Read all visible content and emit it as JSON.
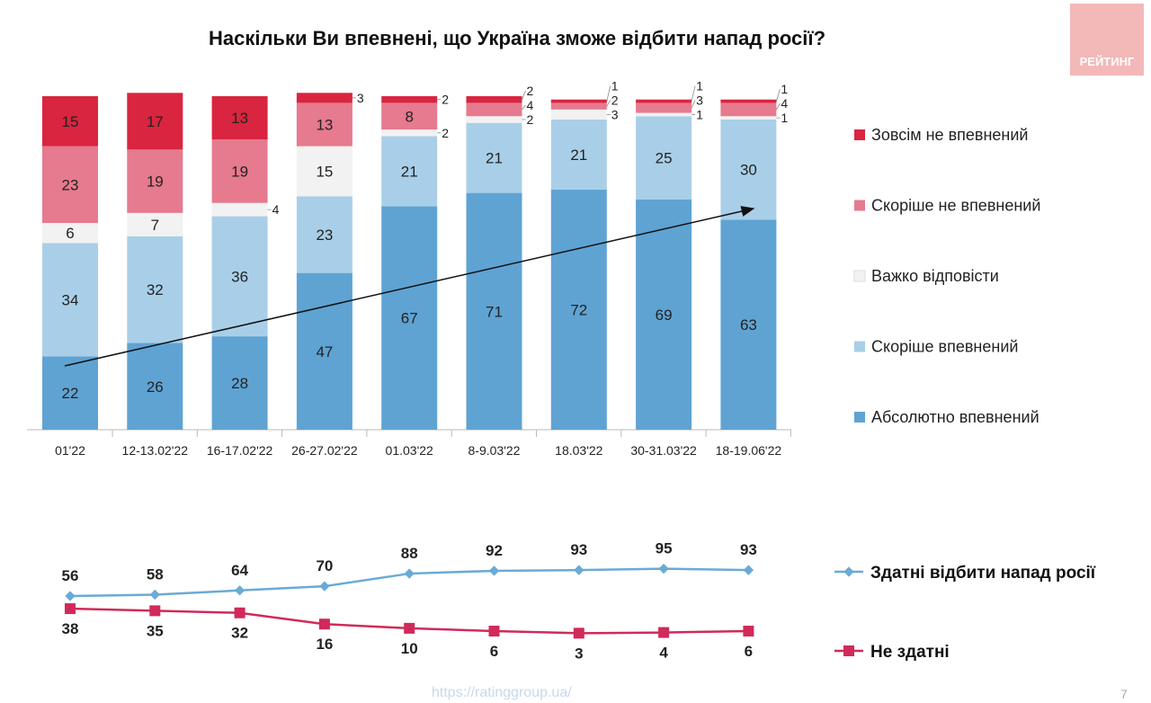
{
  "title": "Наскільки Ви впевнені, що Україна зможе відбити напад росії?",
  "logo_text": "РЕЙТИНГ",
  "footer_url": "https://ratinggroup.ua/",
  "page_number": "7",
  "chart_data": [
    {
      "type": "bar",
      "stacked": true,
      "categories": [
        "01'22",
        "12-13.02'22",
        "16-17.02'22",
        "26-27.02'22",
        "01.03'22",
        "8-9.03'22",
        "18.03'22",
        "30-31.03'22",
        "18-19.06'22"
      ],
      "series": [
        {
          "name": "Абсолютно впевнений",
          "color": "#5fa3d3",
          "values": [
            22,
            26,
            28,
            47,
            67,
            71,
            72,
            69,
            63
          ]
        },
        {
          "name": "Скоріше впевнений",
          "color": "#a9cfe8",
          "values": [
            34,
            32,
            36,
            23,
            21,
            21,
            21,
            25,
            30
          ]
        },
        {
          "name": "Важко відповісти",
          "color": "#f2f2f2",
          "values": [
            6,
            7,
            4,
            15,
            2,
            2,
            3,
            1,
            1
          ]
        },
        {
          "name": "Скоріше не впевнений",
          "color": "#e67a8e",
          "values": [
            23,
            19,
            19,
            13,
            8,
            4,
            2,
            3,
            4
          ]
        },
        {
          "name": "Зовсім не впевнений",
          "color": "#d9253f",
          "values": [
            15,
            17,
            13,
            3,
            2,
            2,
            1,
            1,
            1
          ]
        }
      ],
      "legend": "right",
      "trend_arrow": true
    },
    {
      "type": "line",
      "categories": [
        "01'22",
        "12-13.02'22",
        "16-17.02'22",
        "26-27.02'22",
        "01.03'22",
        "8-9.03'22",
        "18.03'22",
        "30-31.03'22",
        "18-19.06'22"
      ],
      "series": [
        {
          "name": "Здатні відбити напад росії",
          "color": "#6aaad6",
          "marker": "diamond",
          "values": [
            56,
            58,
            64,
            70,
            88,
            92,
            93,
            95,
            93
          ]
        },
        {
          "name": "Не здатні",
          "color": "#d02a5a",
          "marker": "square",
          "values": [
            38,
            35,
            32,
            16,
            10,
            6,
            3,
            4,
            6
          ]
        }
      ],
      "legend": "right"
    }
  ]
}
